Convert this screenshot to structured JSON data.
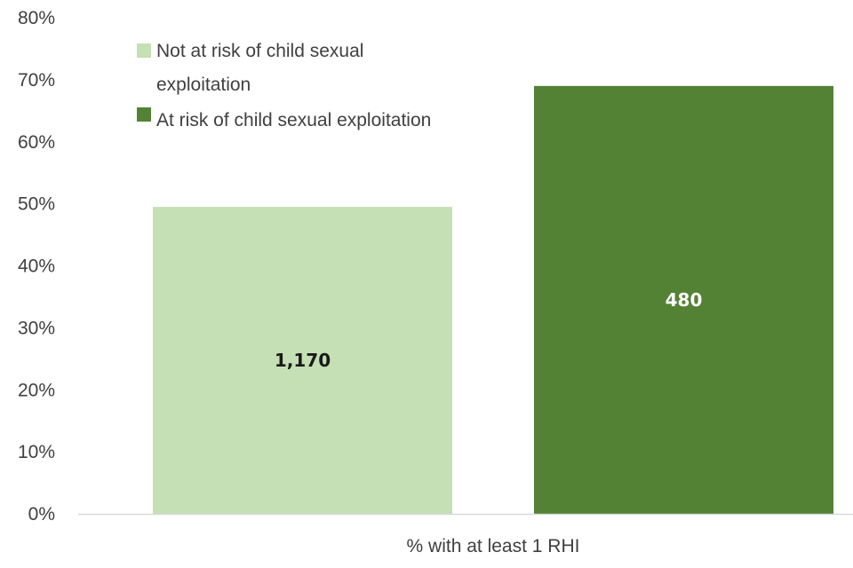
{
  "chart_data": {
    "type": "bar",
    "categories": [
      "% with at least 1 RHI"
    ],
    "series": [
      {
        "name": "Not at risk of child sexual exploitation",
        "legend_lines": [
          "Not at risk of child sexual",
          "exploitation"
        ],
        "values": [
          49.5
        ],
        "data_label": "1,170",
        "color": "#c5e0b4",
        "label_color": "#1a1a1a"
      },
      {
        "name": "At risk of child sexual exploitation",
        "legend_lines": [
          "At risk of child sexual exploitation"
        ],
        "values": [
          69
        ],
        "data_label": "480",
        "color": "#548235",
        "label_color": "#ffffff"
      }
    ],
    "ylim": [
      0,
      80
    ],
    "yticks": [
      0,
      10,
      20,
      30,
      40,
      50,
      60,
      70,
      80
    ],
    "ytick_labels": [
      "0%",
      "10%",
      "20%",
      "30%",
      "40%",
      "50%",
      "60%",
      "70%",
      "80%"
    ],
    "title": "",
    "xlabel": "",
    "ylabel": "",
    "legend_position": "top-left",
    "grid": false,
    "axis_color": "#d9d9d9"
  }
}
